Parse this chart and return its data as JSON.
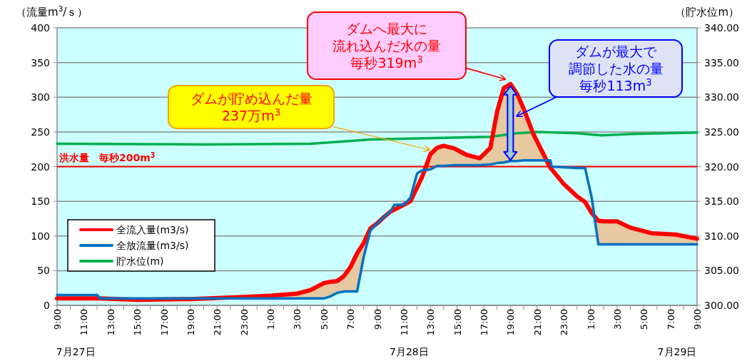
{
  "chart_data": {
    "type": "line",
    "ylabel": "（流量m$^{3}$/ｓ）",
    "y2label": "（貯水位m）",
    "xlim": [
      "--07-27T09:00",
      "--07-29T09:00"
    ],
    "xticks": [
      {
        "value": "--07-27T09:00",
        "label": "9:00"
      },
      {
        "value": "--07-27T10:00",
        "label": null
      },
      {
        "value": "--07-27T11:00",
        "label": "11:00"
      },
      {
        "value": "--07-27T12:00",
        "label": null
      },
      {
        "value": "--07-27T13:00",
        "label": "13:00"
      },
      {
        "value": "--07-27T14:00",
        "label": null
      },
      {
        "value": "--07-27T15:00",
        "label": "15:00"
      },
      {
        "value": "--07-27T16:00",
        "label": null
      },
      {
        "value": "--07-27T17:00",
        "label": "17:00"
      },
      {
        "value": "--07-27T18:00",
        "label": null
      },
      {
        "value": "--07-27T19:00",
        "label": "19:00"
      },
      {
        "value": "--07-27T20:00",
        "label": null
      },
      {
        "value": "--07-27T21:00",
        "label": "21:00"
      },
      {
        "value": "--07-27T22:00",
        "label": null
      },
      {
        "value": "--07-27T23:00",
        "label": "23:00"
      },
      {
        "value": "--07-28T00:00",
        "label": null
      },
      {
        "value": "--07-28T01:00",
        "label": "1:00"
      },
      {
        "value": "--07-28T02:00",
        "label": null
      },
      {
        "value": "--07-28T03:00",
        "label": "3:00"
      },
      {
        "value": "--07-28T04:00",
        "label": null
      },
      {
        "value": "--07-28T05:00",
        "label": "5:00"
      },
      {
        "value": "--07-28T06:00",
        "label": null
      },
      {
        "value": "--07-28T07:00",
        "label": "7:00"
      },
      {
        "value": "--07-28T08:00",
        "label": null
      },
      {
        "value": "--07-28T09:00",
        "label": "9:00"
      },
      {
        "value": "--07-28T10:00",
        "label": null
      },
      {
        "value": "--07-28T11:00",
        "label": "11:00"
      },
      {
        "value": "--07-28T12:00",
        "label": null
      },
      {
        "value": "--07-28T13:00",
        "label": "13:00"
      },
      {
        "value": "--07-28T14:00",
        "label": null
      },
      {
        "value": "--07-28T15:00",
        "label": "15:00"
      },
      {
        "value": "--07-28T16:00",
        "label": null
      },
      {
        "value": "--07-28T17:00",
        "label": "17:00"
      },
      {
        "value": "--07-28T18:00",
        "label": null
      },
      {
        "value": "--07-28T19:00",
        "label": "19:00"
      },
      {
        "value": "--07-28T20:00",
        "label": null
      },
      {
        "value": "--07-28T21:00",
        "label": "21:00"
      },
      {
        "value": "--07-28T22:00",
        "label": null
      },
      {
        "value": "--07-28T23:00",
        "label": "23:00"
      },
      {
        "value": "--07-29T00:00",
        "label": null
      },
      {
        "value": "--07-29T01:00",
        "label": "1:00"
      },
      {
        "value": "--07-29T02:00",
        "label": null
      },
      {
        "value": "--07-29T03:00",
        "label": "3:00"
      },
      {
        "value": "--07-29T04:00",
        "label": null
      },
      {
        "value": "--07-29T05:00",
        "label": "5:00"
      },
      {
        "value": "--07-29T06:00",
        "label": null
      },
      {
        "value": "--07-29T07:00",
        "label": "7:00"
      },
      {
        "value": "--07-29T08:00",
        "label": null
      },
      {
        "value": "--07-29T09:00",
        "label": "9:00"
      }
    ],
    "x2lim": [
      "--07-27T09:00",
      "--07-29T09:00"
    ],
    "x2ticks": [
      {
        "value": "--07-27T10:24",
        "label": "7月27日"
      },
      {
        "value": "--07-28T11:24",
        "label": "7月28日"
      },
      {
        "value": "--07-29T07:30",
        "label": "7月29日"
      }
    ],
    "ylim": [
      0,
      400
    ],
    "yticks": [
      0,
      50,
      100,
      150,
      200,
      250,
      300,
      350,
      400
    ],
    "y2lim": [
      300,
      340
    ],
    "y2ticks": [
      {
        "value": 300,
        "label": "300.00"
      },
      {
        "value": 305,
        "label": "305.00"
      },
      {
        "value": 310,
        "label": "310.00"
      },
      {
        "value": 315,
        "label": "315.00"
      },
      {
        "value": 320,
        "label": "320.00"
      },
      {
        "value": 325,
        "label": "325.00"
      },
      {
        "value": 330,
        "label": "330.00"
      },
      {
        "value": 335,
        "label": "335.00"
      },
      {
        "value": 340,
        "label": "340.00"
      }
    ],
    "x": [
      "--07-27T09:00",
      "--07-27T12:00",
      "--07-27T12:12",
      "--07-27T15:00",
      "--07-27T19:00",
      "--07-27T23:00",
      "--07-28T01:00",
      "--07-28T03:00",
      "--07-28T04:00",
      "--07-28T05:00",
      "--07-28T05:30",
      "--07-28T06:00",
      "--07-28T06:30",
      "--07-28T07:00",
      "--07-28T07:30",
      "--07-28T08:00",
      "--07-28T08:30",
      "--07-28T09:00",
      "--07-28T09:30",
      "--07-28T10:00",
      "--07-28T10:18",
      "--07-28T11:00",
      "--07-28T11:30",
      "--07-28T12:00",
      "--07-28T12:24",
      "--07-28T13:00",
      "--07-28T13:30",
      "--07-28T14:00",
      "--07-28T14:48",
      "--07-28T15:42",
      "--07-28T16:42",
      "--07-28T17:30",
      "--07-28T18:00",
      "--07-28T18:30",
      "--07-28T19:00",
      "--07-28T19:30",
      "--07-28T20:00",
      "--07-28T20:42",
      "--07-28T21:24",
      "--07-28T22:00",
      "--07-28T22:06",
      "--07-28T23:00",
      "--07-29T00:00",
      "--07-29T00:36",
      "--07-29T01:06",
      "--07-29T01:36",
      "--07-29T02:00",
      "--07-29T03:00",
      "--07-29T04:00",
      "--07-29T05:36",
      "--07-29T07:24",
      "--07-29T09:00"
    ],
    "series": [
      {
        "name": "全流入量(m3/s)",
        "color": "#ff0000",
        "values": [
          10,
          10,
          10,
          8,
          9,
          12,
          14,
          17,
          22,
          32,
          34,
          35,
          42,
          55,
          75,
          90,
          111,
          118,
          127,
          135,
          138,
          145,
          150,
          170,
          186,
          218,
          227,
          230,
          226,
          217,
          212,
          227,
          279,
          313,
          319,
          305,
          283,
          248,
          221,
          198,
          196,
          175,
          157,
          149,
          133,
          122,
          121,
          121,
          112,
          104,
          102,
          96
        ],
        "lower": [
          10,
          10,
          10,
          8,
          9,
          10,
          10,
          10,
          10,
          10,
          13,
          18,
          20,
          20,
          20,
          70,
          108,
          118,
          127,
          135,
          138,
          145,
          150,
          170,
          186,
          196,
          201,
          201,
          202,
          202,
          202,
          203,
          205,
          206,
          208,
          208,
          209,
          209,
          209,
          198,
          196,
          175,
          157,
          149,
          133,
          88,
          88,
          88,
          88,
          88,
          88,
          88
        ],
        "upper": [
          10,
          10,
          10,
          8,
          9,
          12,
          14,
          17,
          22,
          32,
          34,
          35,
          42,
          55,
          75,
          90,
          111,
          118,
          127,
          135,
          138,
          145,
          150,
          170,
          186,
          218,
          227,
          230,
          226,
          217,
          212,
          227,
          279,
          313,
          319,
          305,
          283,
          248,
          221,
          198,
          196,
          175,
          157,
          149,
          133,
          122,
          121,
          121,
          112,
          104,
          102,
          96
        ]
      },
      {
        "name": "全放流量(m3/s)",
        "color": "#0070c0",
        "values": [
          15,
          15,
          10,
          10,
          10,
          10,
          10,
          10,
          10,
          10,
          13,
          18,
          20,
          20,
          20,
          70,
          108,
          118,
          127,
          135,
          145,
          145,
          155,
          190,
          195,
          196,
          201,
          201,
          202,
          202,
          202,
          203,
          205,
          206,
          208,
          208,
          209,
          209,
          209,
          209,
          200,
          199,
          198,
          198,
          155,
          88,
          88,
          88,
          88,
          88,
          88,
          88
        ]
      },
      {
        "name": "貯水位(m)",
        "color": "#00b050",
        "axis": "y2",
        "x": [
          "--07-27T09:00",
          "--07-27T20:00",
          "--07-28T04:00",
          "--07-28T08:30",
          "--07-28T17:30",
          "--07-28T19:30",
          "--07-28T21:00",
          "--07-29T00:00",
          "--07-29T01:48",
          "--07-29T04:12",
          "--07-29T09:00"
        ],
        "values": [
          323.3,
          323.2,
          323.3,
          323.9,
          324.3,
          324.8,
          325.0,
          324.8,
          324.5,
          324.7,
          324.9
        ]
      }
    ],
    "ref_lines": [
      {
        "axis": "y",
        "value": 200,
        "label": "洪水量　毎秒200m$^{3}$",
        "color": "#ff0000"
      }
    ],
    "annotations": [
      "ダムが貯め込んだ量",
      "237万m$^{3}$",
      "ダムへ最大に",
      "流れ込んだ水の量",
      "毎秒319m$^{3}$",
      "ダムが最大で",
      "調節した水の量",
      "毎秒113m$^{3}$"
    ],
    "grid": "y",
    "legend": "bottom left"
  }
}
